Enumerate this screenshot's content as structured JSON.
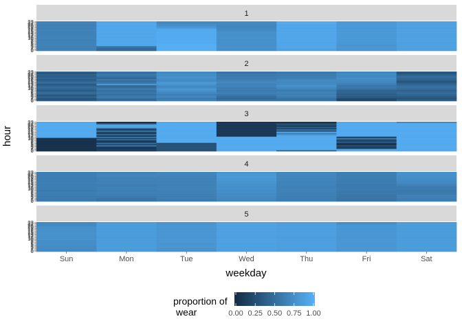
{
  "chart_data": {
    "type": "heatmap",
    "xlabel": "weekday",
    "ylabel": "hour",
    "categories": [
      "Sun",
      "Mon",
      "Tue",
      "Wed",
      "Thu",
      "Fri",
      "Sat"
    ],
    "hours": [
      0,
      1,
      2,
      3,
      4,
      5,
      6,
      7,
      8,
      9,
      10,
      11,
      12,
      13,
      14,
      15,
      16,
      17,
      18,
      19,
      20,
      21,
      22,
      23
    ],
    "panels": [
      {
        "label": "1",
        "values": [
          [
            0.65,
            0.65,
            0.64,
            0.64,
            0.66,
            0.66,
            0.65,
            0.65,
            0.64,
            0.64,
            0.66,
            0.66,
            0.65,
            0.65,
            0.64,
            0.64,
            0.66,
            0.66,
            0.65,
            0.65,
            0.64,
            0.64,
            0.66,
            0.66
          ],
          [
            0.45,
            0.48,
            0.5,
            0.55,
            0.92,
            0.92,
            0.93,
            0.92,
            0.92,
            0.93,
            0.92,
            0.92,
            0.93,
            0.92,
            0.92,
            0.93,
            0.92,
            0.92,
            0.93,
            0.92,
            0.92,
            0.93,
            0.92,
            0.92
          ],
          [
            0.98,
            0.98,
            0.98,
            0.98,
            0.98,
            0.98,
            0.95,
            0.95,
            0.95,
            0.95,
            0.95,
            0.95,
            0.95,
            0.95,
            0.95,
            0.95,
            0.95,
            0.95,
            0.85,
            0.8,
            0.75,
            0.75,
            0.7,
            0.72
          ],
          [
            0.75,
            0.75,
            0.76,
            0.76,
            0.75,
            0.75,
            0.76,
            0.76,
            0.75,
            0.75,
            0.76,
            0.76,
            0.75,
            0.75,
            0.76,
            0.76,
            0.72,
            0.7,
            0.7,
            0.68,
            0.68,
            0.7,
            0.7,
            0.72
          ],
          [
            0.88,
            0.88,
            0.92,
            0.92,
            0.92,
            0.92,
            0.92,
            0.92,
            0.92,
            0.92,
            0.92,
            0.92,
            0.92,
            0.92,
            0.92,
            0.92,
            0.92,
            0.92,
            0.92,
            0.92,
            0.92,
            0.92,
            0.95,
            0.95
          ],
          [
            0.78,
            0.8,
            0.8,
            0.8,
            0.78,
            0.8,
            0.82,
            0.82,
            0.82,
            0.82,
            0.82,
            0.82,
            0.82,
            0.82,
            0.82,
            0.82,
            0.82,
            0.82,
            0.82,
            0.82,
            0.82,
            0.82,
            0.82,
            0.82
          ],
          [
            0.88,
            0.88,
            0.88,
            0.88,
            0.88,
            0.88,
            0.88,
            0.88,
            0.88,
            0.88,
            0.88,
            0.88,
            0.88,
            0.88,
            0.88,
            0.88,
            0.88,
            0.88,
            0.88,
            0.88,
            0.88,
            0.88,
            0.88,
            0.88
          ]
        ]
      },
      {
        "label": "2",
        "values": [
          [
            0.4,
            0.3,
            0.35,
            0.45,
            0.3,
            0.4,
            0.5,
            0.45,
            0.35,
            0.4,
            0.45,
            0.5,
            0.4,
            0.35,
            0.45,
            0.5,
            0.4,
            0.35,
            0.45,
            0.4,
            0.35,
            0.45,
            0.3,
            0.4
          ],
          [
            0.5,
            0.45,
            0.55,
            0.6,
            0.55,
            0.5,
            0.6,
            0.55,
            0.5,
            0.6,
            0.55,
            0.5,
            0.45,
            0.85,
            0.6,
            0.55,
            0.5,
            0.6,
            0.45,
            0.5,
            0.55,
            0.6,
            0.5,
            0.55
          ],
          [
            0.65,
            0.62,
            0.6,
            0.7,
            0.65,
            0.62,
            0.7,
            0.72,
            0.75,
            0.8,
            0.75,
            0.7,
            0.72,
            0.78,
            0.82,
            0.78,
            0.72,
            0.7,
            0.75,
            0.78,
            0.72,
            0.75,
            0.7,
            0.72
          ],
          [
            0.55,
            0.5,
            0.45,
            0.5,
            0.55,
            0.6,
            0.65,
            0.6,
            0.58,
            0.62,
            0.6,
            0.65,
            0.68,
            0.65,
            0.68,
            0.7,
            0.65,
            0.62,
            0.6,
            0.62,
            0.58,
            0.6,
            0.55,
            0.55
          ],
          [
            0.55,
            0.5,
            0.55,
            0.6,
            0.65,
            0.62,
            0.65,
            0.65,
            0.6,
            0.62,
            0.7,
            0.72,
            0.78,
            0.72,
            0.7,
            0.68,
            0.72,
            0.7,
            0.65,
            0.62,
            0.6,
            0.62,
            0.58,
            0.6
          ],
          [
            0.25,
            0.2,
            0.3,
            0.35,
            0.4,
            0.38,
            0.42,
            0.45,
            0.42,
            0.5,
            0.55,
            0.6,
            0.55,
            0.62,
            0.65,
            0.68,
            0.7,
            0.72,
            0.75,
            0.7,
            0.68,
            0.72,
            0.7,
            0.68
          ],
          [
            0.4,
            0.35,
            0.3,
            0.35,
            0.4,
            0.45,
            0.5,
            0.45,
            0.4,
            0.45,
            0.5,
            0.55,
            0.5,
            0.45,
            0.4,
            0.3,
            0.35,
            0.4,
            0.45,
            0.5,
            0.45,
            0.4,
            0.3,
            0.35
          ]
        ]
      },
      {
        "label": "3",
        "values": [
          [
            0.05,
            0.05,
            0.05,
            0.05,
            0.05,
            0.05,
            0.05,
            0.05,
            0.05,
            0.05,
            0.05,
            0.95,
            0.95,
            0.95,
            0.95,
            0.95,
            0.95,
            0.95,
            0.95,
            0.95,
            0.95,
            0.95,
            0.95,
            0.95
          ],
          [
            0.15,
            0.15,
            0.1,
            0.1,
            0.6,
            0.2,
            0.5,
            0.15,
            0.1,
            0.5,
            0.2,
            0.6,
            0.1,
            0.5,
            0.15,
            0.2,
            0.6,
            0.1,
            0.4,
            0.9,
            0.9,
            0.9,
            0.3,
            0.1
          ],
          [
            0.3,
            0.3,
            0.3,
            0.3,
            0.3,
            0.3,
            0.3,
            0.95,
            0.95,
            0.95,
            0.95,
            0.95,
            0.95,
            0.95,
            0.95,
            0.95,
            0.95,
            0.95,
            0.95,
            0.95,
            0.95,
            0.95,
            0.95,
            0.95
          ],
          [
            0.95,
            0.95,
            0.95,
            0.95,
            0.95,
            0.95,
            0.95,
            0.95,
            0.95,
            0.95,
            0.95,
            0.95,
            0.1,
            0.1,
            0.1,
            0.1,
            0.1,
            0.1,
            0.1,
            0.1,
            0.1,
            0.1,
            0.1,
            0.1
          ],
          [
            0.4,
            0.95,
            0.95,
            0.95,
            0.95,
            0.95,
            0.95,
            0.95,
            0.95,
            0.95,
            0.95,
            0.95,
            0.95,
            0.8,
            0.6,
            0.95,
            0.3,
            0.5,
            0.2,
            0.4,
            0.1,
            0.3,
            0.2,
            0.1
          ],
          [
            0.95,
            0.95,
            0.2,
            0.1,
            0.3,
            0.05,
            0.1,
            0.4,
            0.15,
            0.3,
            0.6,
            0.1,
            0.95,
            0.95,
            0.95,
            0.95,
            0.95,
            0.95,
            0.95,
            0.95,
            0.95,
            0.95,
            0.95,
            0.95
          ],
          [
            0.95,
            0.95,
            0.95,
            0.95,
            0.95,
            0.95,
            0.95,
            0.95,
            0.95,
            0.95,
            0.95,
            0.95,
            0.95,
            0.95,
            0.95,
            0.95,
            0.95,
            0.95,
            0.95,
            0.95,
            0.95,
            0.95,
            0.95,
            0.7
          ]
        ]
      },
      {
        "label": "4",
        "values": [
          [
            0.6,
            0.6,
            0.6,
            0.6,
            0.6,
            0.62,
            0.62,
            0.62,
            0.6,
            0.6,
            0.62,
            0.62,
            0.62,
            0.62,
            0.62,
            0.62,
            0.62,
            0.62,
            0.62,
            0.62,
            0.62,
            0.62,
            0.62,
            0.62
          ],
          [
            0.55,
            0.55,
            0.55,
            0.58,
            0.6,
            0.62,
            0.65,
            0.65,
            0.62,
            0.62,
            0.65,
            0.65,
            0.62,
            0.62,
            0.65,
            0.65,
            0.65,
            0.65,
            0.65,
            0.65,
            0.68,
            0.68,
            0.65,
            0.65
          ],
          [
            0.6,
            0.6,
            0.62,
            0.62,
            0.62,
            0.62,
            0.64,
            0.64,
            0.64,
            0.65,
            0.65,
            0.65,
            0.65,
            0.65,
            0.65,
            0.65,
            0.65,
            0.65,
            0.65,
            0.66,
            0.66,
            0.68,
            0.68,
            0.68
          ],
          [
            0.68,
            0.68,
            0.7,
            0.7,
            0.72,
            0.72,
            0.72,
            0.74,
            0.74,
            0.74,
            0.75,
            0.75,
            0.75,
            0.76,
            0.76,
            0.78,
            0.78,
            0.8,
            0.8,
            0.82,
            0.82,
            0.82,
            0.8,
            0.78
          ],
          [
            0.62,
            0.62,
            0.63,
            0.63,
            0.63,
            0.64,
            0.64,
            0.64,
            0.65,
            0.65,
            0.65,
            0.65,
            0.66,
            0.66,
            0.66,
            0.66,
            0.66,
            0.67,
            0.67,
            0.68,
            0.68,
            0.68,
            0.68,
            0.68
          ],
          [
            0.55,
            0.55,
            0.56,
            0.56,
            0.57,
            0.57,
            0.58,
            0.58,
            0.58,
            0.6,
            0.6,
            0.6,
            0.6,
            0.6,
            0.6,
            0.61,
            0.61,
            0.61,
            0.62,
            0.62,
            0.62,
            0.63,
            0.63,
            0.63
          ],
          [
            0.62,
            0.62,
            0.63,
            0.64,
            0.64,
            0.62,
            0.6,
            0.6,
            0.58,
            0.58,
            0.6,
            0.6,
            0.62,
            0.65,
            0.68,
            0.7,
            0.72,
            0.72,
            0.74,
            0.74,
            0.74,
            0.75,
            0.75,
            0.75
          ]
        ]
      },
      {
        "label": "5",
        "values": [
          [
            0.72,
            0.72,
            0.72,
            0.72,
            0.72,
            0.74,
            0.74,
            0.74,
            0.74,
            0.76,
            0.76,
            0.76,
            0.76,
            0.76,
            0.76,
            0.76,
            0.76,
            0.76,
            0.76,
            0.76,
            0.74,
            0.7,
            0.7,
            0.7
          ],
          [
            0.84,
            0.84,
            0.84,
            0.84,
            0.84,
            0.84,
            0.84,
            0.84,
            0.84,
            0.84,
            0.84,
            0.84,
            0.84,
            0.84,
            0.84,
            0.84,
            0.84,
            0.84,
            0.84,
            0.84,
            0.84,
            0.84,
            0.84,
            0.84
          ],
          [
            0.78,
            0.78,
            0.78,
            0.79,
            0.79,
            0.79,
            0.79,
            0.8,
            0.8,
            0.8,
            0.8,
            0.8,
            0.8,
            0.8,
            0.8,
            0.8,
            0.8,
            0.8,
            0.8,
            0.8,
            0.8,
            0.8,
            0.78,
            0.78
          ],
          [
            0.88,
            0.88,
            0.88,
            0.88,
            0.88,
            0.88,
            0.88,
            0.88,
            0.88,
            0.88,
            0.88,
            0.88,
            0.88,
            0.88,
            0.88,
            0.88,
            0.88,
            0.88,
            0.88,
            0.88,
            0.88,
            0.88,
            0.88,
            0.88
          ],
          [
            0.86,
            0.86,
            0.86,
            0.86,
            0.86,
            0.86,
            0.86,
            0.86,
            0.86,
            0.86,
            0.86,
            0.86,
            0.86,
            0.86,
            0.86,
            0.86,
            0.86,
            0.86,
            0.86,
            0.86,
            0.86,
            0.86,
            0.86,
            0.86
          ],
          [
            0.8,
            0.8,
            0.8,
            0.8,
            0.8,
            0.8,
            0.8,
            0.8,
            0.8,
            0.8,
            0.8,
            0.8,
            0.8,
            0.8,
            0.8,
            0.8,
            0.8,
            0.8,
            0.8,
            0.8,
            0.8,
            0.8,
            0.74,
            0.74
          ],
          [
            0.84,
            0.84,
            0.84,
            0.84,
            0.84,
            0.84,
            0.84,
            0.84,
            0.84,
            0.84,
            0.84,
            0.84,
            0.84,
            0.84,
            0.84,
            0.84,
            0.84,
            0.84,
            0.84,
            0.84,
            0.84,
            0.84,
            0.84,
            0.84
          ]
        ]
      }
    ],
    "legend": {
      "title_line1": "proportion of",
      "title_line2": "wear",
      "placement": "bottom",
      "ticks": [
        "0.00",
        "0.25",
        "0.50",
        "0.75",
        "1.00"
      ],
      "tick_values": [
        0,
        0.25,
        0.5,
        0.75,
        1.0
      ],
      "low_color": "#132B43",
      "high_color": "#56B1F7"
    },
    "colors": {
      "strip_background": "#D9D9D9",
      "grid": "#EBEBEB",
      "text": "#4D4D4D",
      "axis_title": "#000000"
    }
  }
}
